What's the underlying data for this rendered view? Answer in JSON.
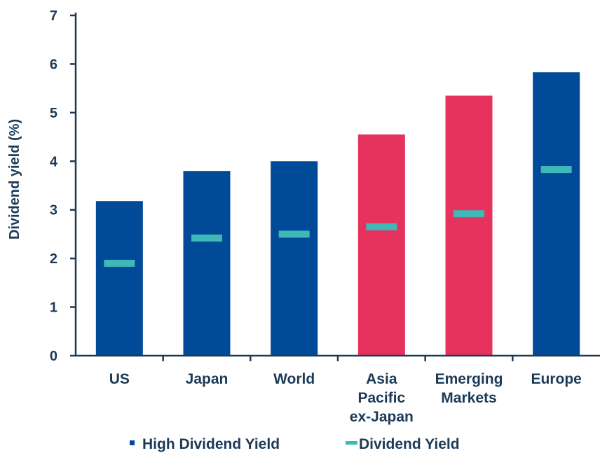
{
  "chart_data": {
    "type": "bar",
    "title": "",
    "xlabel": "",
    "ylabel": "Dividend yield (%)",
    "ylim": [
      0,
      7
    ],
    "yticks": [
      0,
      1,
      2,
      3,
      4,
      5,
      6,
      7
    ],
    "grid": false,
    "legend_position": "bottom",
    "categories": [
      [
        "US"
      ],
      [
        "Japan"
      ],
      [
        "World"
      ],
      [
        "Asia",
        "Pacific",
        "ex-Japan"
      ],
      [
        "Emerging",
        "Markets"
      ],
      [
        "Europe"
      ]
    ],
    "series": [
      {
        "name": "High Dividend Yield",
        "marker": "bar",
        "values": [
          3.18,
          3.8,
          4.0,
          4.55,
          5.35,
          5.83
        ],
        "colors": [
          "#004a97",
          "#004a97",
          "#004a97",
          "#e5335e",
          "#e5335e",
          "#004a97"
        ]
      },
      {
        "name": "Dividend Yield",
        "marker": "dash",
        "values": [
          1.9,
          2.42,
          2.5,
          2.65,
          2.92,
          3.83
        ],
        "color": "#3fb8b8"
      }
    ],
    "legend": [
      {
        "label": "High Dividend Yield",
        "color": "#004a97",
        "marker": "square"
      },
      {
        "label": "Dividend Yield",
        "color": "#3fb8b8",
        "marker": "dash"
      }
    ],
    "colors": {
      "text": "#1b3a57",
      "axis": "#1b3a57"
    }
  }
}
